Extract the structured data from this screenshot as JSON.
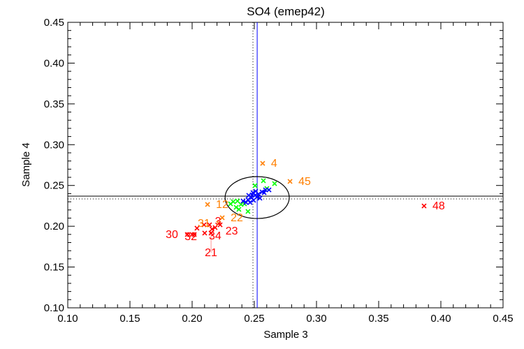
{
  "chart_data": {
    "type": "scatter",
    "title": "SO4 (emep42)",
    "xlabel": "Sample 3",
    "ylabel": "Sample 4",
    "xlim": [
      0.1,
      0.45
    ],
    "ylim": [
      0.1,
      0.45
    ],
    "xticks": [
      "0.10",
      "0.15",
      "0.20",
      "0.25",
      "0.30",
      "0.35",
      "0.40",
      "0.45"
    ],
    "yticks": [
      "0.10",
      "0.15",
      "0.20",
      "0.25",
      "0.30",
      "0.35",
      "0.40",
      "0.45"
    ],
    "grid": false,
    "reference_lines": {
      "vertical_solid": 0.2523,
      "vertical_dotted": 0.2489,
      "horizontal_solid": 0.2369,
      "horizontal_dotted": 0.2335,
      "solid_color": "#0000ff",
      "dotted_color": "#000000"
    },
    "ellipse": {
      "cx": 0.2523,
      "cy": 0.2352,
      "rx": 0.0258,
      "ry": 0.0257,
      "color": "#000000"
    },
    "series": [
      {
        "name": "orange",
        "color": "#ff7f00",
        "points": [
          {
            "x": 0.2567,
            "y": 0.2771,
            "label": "4"
          },
          {
            "x": 0.2787,
            "y": 0.2549,
            "label": "45"
          },
          {
            "x": 0.2124,
            "y": 0.2267,
            "label": "12"
          },
          {
            "x": 0.2242,
            "y": 0.2104,
            "label": "22"
          },
          {
            "x": 0.2213,
            "y": 0.2036,
            "label": "31"
          }
        ]
      },
      {
        "name": "red",
        "color": "#ff0000",
        "points": [
          {
            "x": 0.3865,
            "y": 0.2249,
            "label": "48"
          },
          {
            "x": 0.2225,
            "y": 0.2018,
            "label": "23"
          },
          {
            "x": 0.2185,
            "y": 0.1984,
            "label": "34"
          },
          {
            "x": 0.216,
            "y": 0.1965,
            "label": "3"
          },
          {
            "x": 0.2101,
            "y": 0.1916,
            "label": "32"
          },
          {
            "x": 0.2152,
            "y": 0.1916,
            "label": "21"
          },
          {
            "x": 0.2,
            "y": 0.1899,
            "label": "30"
          },
          {
            "x": 0.1961,
            "y": 0.1899,
            "label": ""
          },
          {
            "x": 0.2017,
            "y": 0.1899,
            "label": ""
          },
          {
            "x": 0.2039,
            "y": 0.1976,
            "label": ""
          },
          {
            "x": 0.2096,
            "y": 0.2018,
            "label": ""
          },
          {
            "x": 0.214,
            "y": 0.2018,
            "label": ""
          }
        ]
      },
      {
        "name": "green",
        "color": "#00ff00",
        "points": [
          {
            "x": 0.2573,
            "y": 0.2558
          },
          {
            "x": 0.2663,
            "y": 0.2523
          },
          {
            "x": 0.2506,
            "y": 0.2498
          },
          {
            "x": 0.2601,
            "y": 0.2463
          },
          {
            "x": 0.2331,
            "y": 0.2301
          },
          {
            "x": 0.2354,
            "y": 0.2232
          },
          {
            "x": 0.2393,
            "y": 0.2267
          },
          {
            "x": 0.2376,
            "y": 0.2207
          },
          {
            "x": 0.2421,
            "y": 0.2275
          },
          {
            "x": 0.2449,
            "y": 0.2181
          },
          {
            "x": 0.2309,
            "y": 0.2275
          },
          {
            "x": 0.2365,
            "y": 0.2309
          }
        ]
      },
      {
        "name": "blue",
        "color": "#0000ff",
        "points": [
          {
            "x": 0.2618,
            "y": 0.2446
          },
          {
            "x": 0.2562,
            "y": 0.2421
          },
          {
            "x": 0.2534,
            "y": 0.2395
          },
          {
            "x": 0.2506,
            "y": 0.2378
          },
          {
            "x": 0.2489,
            "y": 0.2412
          },
          {
            "x": 0.2478,
            "y": 0.2352
          },
          {
            "x": 0.2449,
            "y": 0.2326
          },
          {
            "x": 0.2433,
            "y": 0.2292
          },
          {
            "x": 0.2466,
            "y": 0.2292
          },
          {
            "x": 0.2494,
            "y": 0.2318
          },
          {
            "x": 0.2522,
            "y": 0.2361
          },
          {
            "x": 0.2545,
            "y": 0.2344
          },
          {
            "x": 0.2579,
            "y": 0.2412
          },
          {
            "x": 0.2511,
            "y": 0.2429
          },
          {
            "x": 0.2455,
            "y": 0.2378
          },
          {
            "x": 0.241,
            "y": 0.2309
          },
          {
            "x": 0.259,
            "y": 0.2446
          },
          {
            "x": 0.2483,
            "y": 0.2386
          }
        ]
      }
    ]
  }
}
